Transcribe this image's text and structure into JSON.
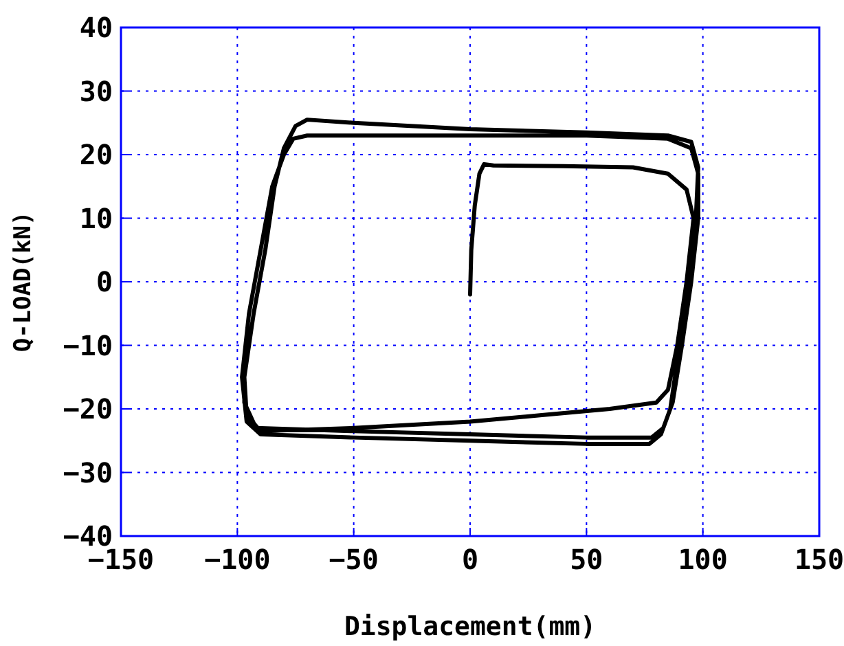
{
  "chart_data": {
    "type": "line",
    "xlabel": "Displacement(mm)",
    "ylabel": "Q-LOAD(kN)",
    "xlim": [
      -150,
      150
    ],
    "ylim": [
      -40,
      40
    ],
    "xticks": [
      -150,
      -100,
      -50,
      0,
      50,
      100,
      150
    ],
    "yticks": [
      -40,
      -30,
      -20,
      -10,
      0,
      10,
      20,
      30,
      40
    ],
    "grid": true,
    "marker": "none",
    "line_style": "solid",
    "series": [
      {
        "color": "#000000",
        "x": [
          0,
          0.5,
          2,
          4,
          6,
          10,
          40,
          70,
          85,
          93,
          96,
          93,
          89,
          85,
          80,
          60,
          30,
          0,
          -50,
          -90,
          -96,
          -97,
          -93,
          -88,
          -84,
          -80,
          -75,
          -70,
          -50,
          0,
          50,
          85,
          95,
          98,
          97,
          94,
          90,
          86,
          82,
          77,
          50,
          0,
          -50,
          -90,
          -96,
          -98,
          -95,
          -90,
          -85,
          -80,
          -76,
          -70,
          0,
          50,
          85,
          95,
          98,
          98,
          95,
          91,
          87,
          83,
          78,
          50,
          0,
          -50,
          -92,
          -97,
          -97
        ],
        "values": [
          -2,
          5,
          12,
          17,
          18.5,
          18.3,
          18.2,
          18,
          17,
          14.5,
          10,
          0,
          -10,
          -17,
          -19,
          -20,
          -21,
          -22,
          -23,
          -23.5,
          -21,
          -15,
          -5,
          5,
          15,
          21,
          24.5,
          25.5,
          25,
          24,
          23.5,
          23,
          22,
          18,
          10,
          0,
          -10,
          -20,
          -24,
          -25.5,
          -25.5,
          -25,
          -24.5,
          -24,
          -22,
          -15,
          -5,
          5,
          15,
          20,
          22.5,
          23,
          23,
          23,
          22.5,
          21,
          17,
          10,
          0,
          -10,
          -19,
          -23,
          -24.5,
          -24.5,
          -24,
          -23.5,
          -23,
          -19,
          -12
        ]
      }
    ]
  }
}
